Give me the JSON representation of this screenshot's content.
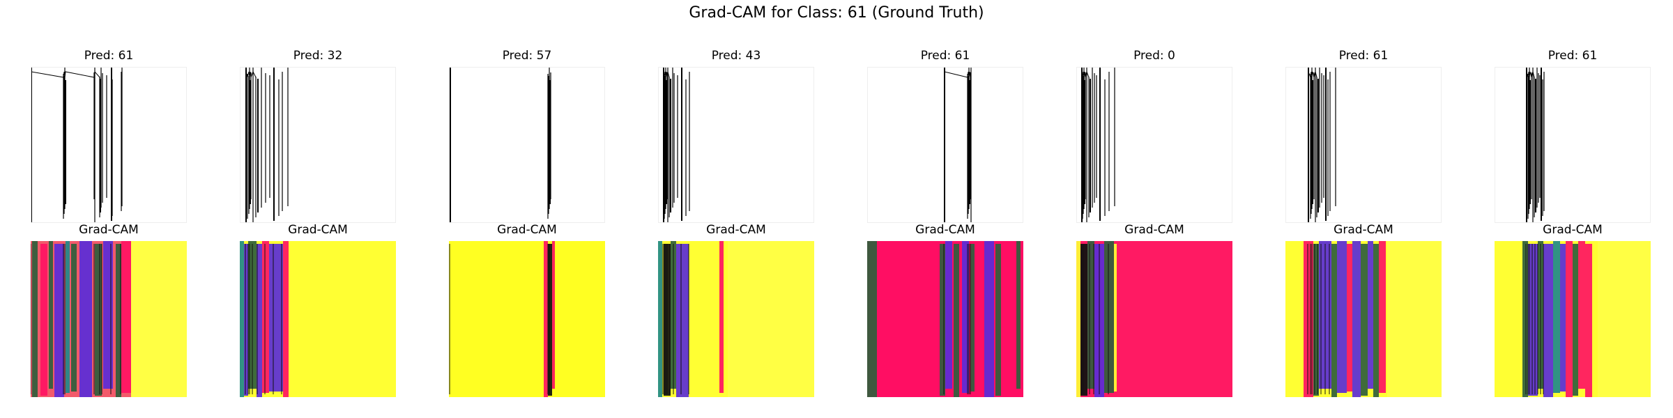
{
  "figure": {
    "title": "Grad-CAM for Class: 61 (Ground Truth)"
  },
  "panels": [
    {
      "pred_label": "Pred: 61",
      "cam_label": "Grad-CAM",
      "cam_base": "#f25a6b",
      "cam_right": "#ffff44"
    },
    {
      "pred_label": "Pred: 32",
      "cam_label": "Grad-CAM",
      "cam_base": "#ffff33",
      "cam_right": "#ffff33"
    },
    {
      "pred_label": "Pred: 57",
      "cam_label": "Grad-CAM",
      "cam_base": "#ffff22",
      "cam_right": "#ffff44"
    },
    {
      "pred_label": "Pred: 43",
      "cam_label": "Grad-CAM",
      "cam_base": "#ffff33",
      "cam_right": "#ffff44"
    },
    {
      "pred_label": "Pred: 61",
      "cam_label": "Grad-CAM",
      "cam_base": "#ff0e63",
      "cam_right": "#ff0e63"
    },
    {
      "pred_label": "Pred: 0",
      "cam_label": "Grad-CAM",
      "cam_base": "#ff1a63",
      "cam_right": "#ff1a63"
    },
    {
      "pred_label": "Pred: 61",
      "cam_label": "Grad-CAM",
      "cam_base": "#ffff33",
      "cam_right": "#ffff44"
    },
    {
      "pred_label": "Pred: 61",
      "cam_label": "Grad-CAM",
      "cam_base": "#ffff33",
      "cam_right": "#ffff44"
    }
  ],
  "colors": {
    "heat_yellow": "#ffff33",
    "heat_magenta": "#ff1463",
    "heat_green": "#2f5e3c",
    "heat_purple": "#5a2cd8",
    "heat_teal": "#1f8a8a",
    "heat_black": "#111111"
  }
}
